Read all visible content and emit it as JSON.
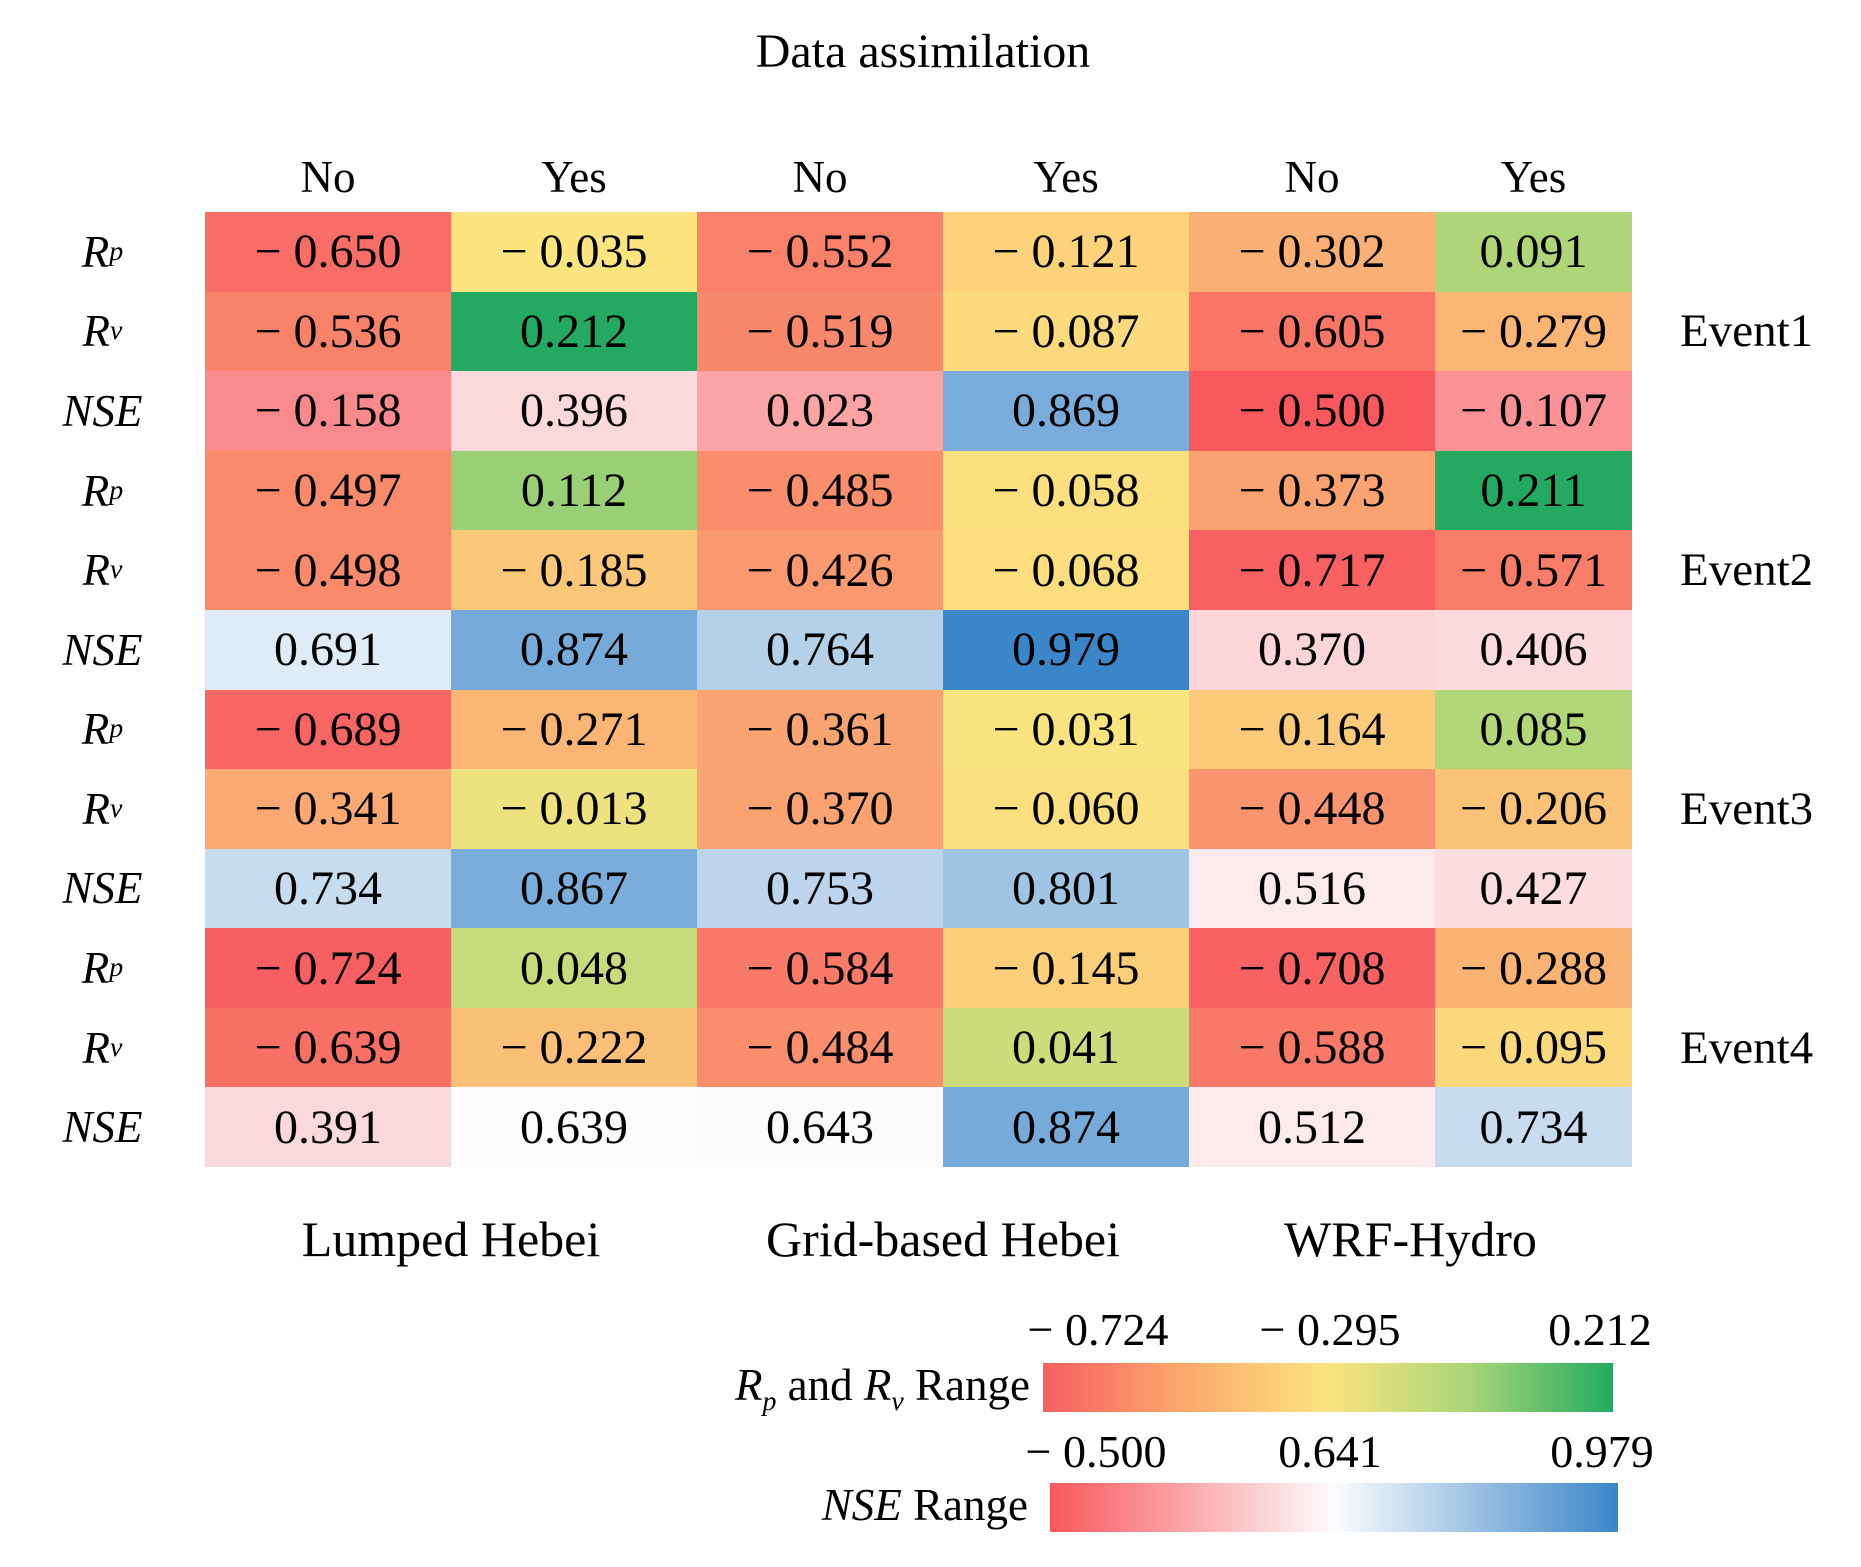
{
  "title": "Data assimilation",
  "chart_data": {
    "type": "heatmap",
    "title": "Data assimilation",
    "col_headers": [
      "No",
      "Yes",
      "No",
      "Yes",
      "No",
      "Yes"
    ],
    "col_groups": [
      "Lumped Hebei",
      "Grid-based Hebei",
      "WRF-Hydro"
    ],
    "row_groups": [
      "Event1",
      "Event2",
      "Event3",
      "Event4"
    ],
    "row_metrics": [
      {
        "base": "R",
        "sub": "p",
        "type": "R"
      },
      {
        "base": "R",
        "sub": "v",
        "type": "R"
      },
      {
        "base": "NSE",
        "sub": "",
        "type": "NSE"
      }
    ],
    "rows": [
      {
        "event": "Event1",
        "metric": "Rp",
        "values": [
          -0.65,
          -0.035,
          -0.552,
          -0.121,
          -0.302,
          0.091
        ]
      },
      {
        "event": "Event1",
        "metric": "Rv",
        "values": [
          -0.536,
          0.212,
          -0.519,
          -0.087,
          -0.605,
          -0.279
        ]
      },
      {
        "event": "Event1",
        "metric": "NSE",
        "values": [
          -0.158,
          0.396,
          0.023,
          0.869,
          -0.5,
          -0.107
        ]
      },
      {
        "event": "Event2",
        "metric": "Rp",
        "values": [
          -0.497,
          0.112,
          -0.485,
          -0.058,
          -0.373,
          0.211
        ]
      },
      {
        "event": "Event2",
        "metric": "Rv",
        "values": [
          -0.498,
          -0.185,
          -0.426,
          -0.068,
          -0.717,
          -0.571
        ]
      },
      {
        "event": "Event2",
        "metric": "NSE",
        "values": [
          0.691,
          0.874,
          0.764,
          0.979,
          0.37,
          0.406
        ]
      },
      {
        "event": "Event3",
        "metric": "Rp",
        "values": [
          -0.689,
          -0.271,
          -0.361,
          -0.031,
          -0.164,
          0.085
        ]
      },
      {
        "event": "Event3",
        "metric": "Rv",
        "values": [
          -0.341,
          -0.013,
          -0.37,
          -0.06,
          -0.448,
          -0.206
        ]
      },
      {
        "event": "Event3",
        "metric": "NSE",
        "values": [
          0.734,
          0.867,
          0.753,
          0.801,
          0.516,
          0.427
        ]
      },
      {
        "event": "Event4",
        "metric": "Rp",
        "values": [
          -0.724,
          0.048,
          -0.584,
          -0.145,
          -0.708,
          -0.288
        ]
      },
      {
        "event": "Event4",
        "metric": "Rv",
        "values": [
          -0.639,
          -0.222,
          -0.484,
          0.041,
          -0.588,
          -0.095
        ]
      },
      {
        "event": "Event4",
        "metric": "NSE",
        "values": [
          0.391,
          0.639,
          0.643,
          0.874,
          0.512,
          0.734
        ]
      }
    ],
    "colormaps": {
      "R": [
        [
          -0.724,
          "#f85f62"
        ],
        [
          -0.035,
          "#fce47f"
        ],
        [
          0.1,
          "#a8d578"
        ],
        [
          0.212,
          "#23aa60"
        ]
      ],
      "NSE": [
        [
          -0.5,
          "#f9595c"
        ],
        [
          0.641,
          "#fcfcfe"
        ],
        [
          0.979,
          "#3a86c8"
        ]
      ]
    },
    "legend": {
      "r_label": {
        "base1": "R",
        "sub1": "p",
        "mid": "and",
        "base2": "R",
        "sub2": "v",
        "suffix": "Range"
      },
      "r_ticks": [
        -0.724,
        -0.295,
        0.212
      ],
      "r_gradient": [
        "#f85f62",
        "#fba96c",
        "#fce47f",
        "#a8d578",
        "#23aa60"
      ],
      "nse_label": {
        "base": "NSE",
        "suffix": "Range"
      },
      "nse_ticks": [
        -0.5,
        0.641,
        0.979
      ],
      "nse_gradient": [
        "#f9585c",
        "#fcfcfe",
        "#3a86c8"
      ]
    }
  }
}
